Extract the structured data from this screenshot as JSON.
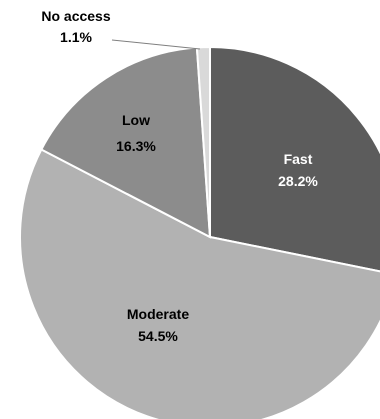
{
  "chart_data": {
    "type": "pie",
    "title": "",
    "start_angle_deg": -90,
    "direction": "clockwise",
    "slices": [
      {
        "label": "Fast",
        "value": 28.2,
        "value_label": "28.2%",
        "color": "#5c5c5c",
        "text_color": "#ffffff"
      },
      {
        "label": "Moderate",
        "value": 54.5,
        "value_label": "54.5%",
        "color": "#b2b2b2",
        "text_color": "#000000"
      },
      {
        "label": "Low",
        "value": 16.3,
        "value_label": "16.3%",
        "color": "#8c8c8c",
        "text_color": "#000000"
      },
      {
        "label": "No access",
        "value": 1.1,
        "value_label": "1.1%",
        "color": "#d9d9d9",
        "text_color": "#000000"
      }
    ]
  }
}
